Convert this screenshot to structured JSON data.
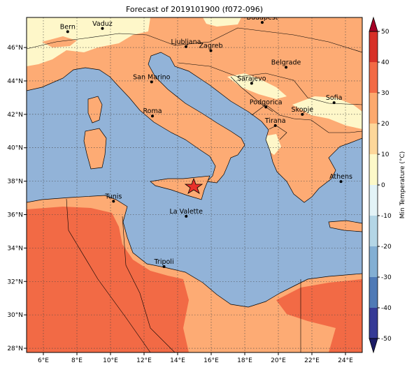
{
  "title": "Forecast of 2019101900 (f072-096)",
  "map": {
    "lon_range": [
      5,
      25
    ],
    "lat_range": [
      27.75,
      47.8
    ],
    "lon_ticks": [
      {
        "value": 6,
        "label": "6°E"
      },
      {
        "value": 8,
        "label": "8°E"
      },
      {
        "value": 10,
        "label": "10°E"
      },
      {
        "value": 12,
        "label": "12°E"
      },
      {
        "value": 14,
        "label": "14°E"
      },
      {
        "value": 16,
        "label": "16°E"
      },
      {
        "value": 18,
        "label": "18°E"
      },
      {
        "value": 20,
        "label": "20°E"
      },
      {
        "value": 22,
        "label": "22°E"
      },
      {
        "value": 24,
        "label": "24°E"
      }
    ],
    "lat_ticks": [
      {
        "value": 28,
        "label": "28°N"
      },
      {
        "value": 30,
        "label": "30°N"
      },
      {
        "value": 32,
        "label": "32°N"
      },
      {
        "value": 34,
        "label": "34°N"
      },
      {
        "value": 36,
        "label": "36°N"
      },
      {
        "value": 38,
        "label": "38°N"
      },
      {
        "value": 40,
        "label": "40°N"
      },
      {
        "value": 42,
        "label": "42°N"
      },
      {
        "value": 44,
        "label": "44°N"
      },
      {
        "value": 46,
        "label": "46°N"
      }
    ],
    "cities": [
      {
        "name": "Bern",
        "lon": 7.45,
        "lat": 46.95
      },
      {
        "name": "Vaduz",
        "lon": 9.52,
        "lat": 47.14
      },
      {
        "name": "Budapest",
        "lon": 19.04,
        "lat": 47.5
      },
      {
        "name": "Ljubljana",
        "lon": 14.5,
        "lat": 46.05
      },
      {
        "name": "Zagreb",
        "lon": 15.98,
        "lat": 45.81
      },
      {
        "name": "Belgrade",
        "lon": 20.46,
        "lat": 44.82
      },
      {
        "name": "San Marino",
        "lon": 12.45,
        "lat": 43.94
      },
      {
        "name": "Sarajevo",
        "lon": 18.41,
        "lat": 43.86
      },
      {
        "name": "Roma",
        "lon": 12.5,
        "lat": 41.9
      },
      {
        "name": "Podgorica",
        "lon": 19.26,
        "lat": 42.44
      },
      {
        "name": "Sofia",
        "lon": 23.32,
        "lat": 42.7
      },
      {
        "name": "Skopje",
        "lon": 21.43,
        "lat": 42.0
      },
      {
        "name": "Tirana",
        "lon": 19.82,
        "lat": 41.33
      },
      {
        "name": "Athens",
        "lon": 23.73,
        "lat": 37.98
      },
      {
        "name": "Tunis",
        "lon": 10.18,
        "lat": 36.8
      },
      {
        "name": "La Valette",
        "lon": 14.51,
        "lat": 35.9
      },
      {
        "name": "Tripoli",
        "lon": 13.19,
        "lat": 32.89
      }
    ]
  },
  "colorbar": {
    "label": "Min Temperature (°C)",
    "range": [
      -50,
      50
    ],
    "ticks": [
      -50,
      -40,
      -30,
      -20,
      -10,
      0,
      10,
      20,
      30,
      40,
      50
    ],
    "colors": [
      "#353a96",
      "#4f7ab6",
      "#83afd3",
      "#b4d6e6",
      "#e3f3f7",
      "#fdf9c9",
      "#fdd79a",
      "#fca96e",
      "#f26a45",
      "#d73027"
    ],
    "under_color": "#1c1c66",
    "over_color": "#a50026"
  }
}
